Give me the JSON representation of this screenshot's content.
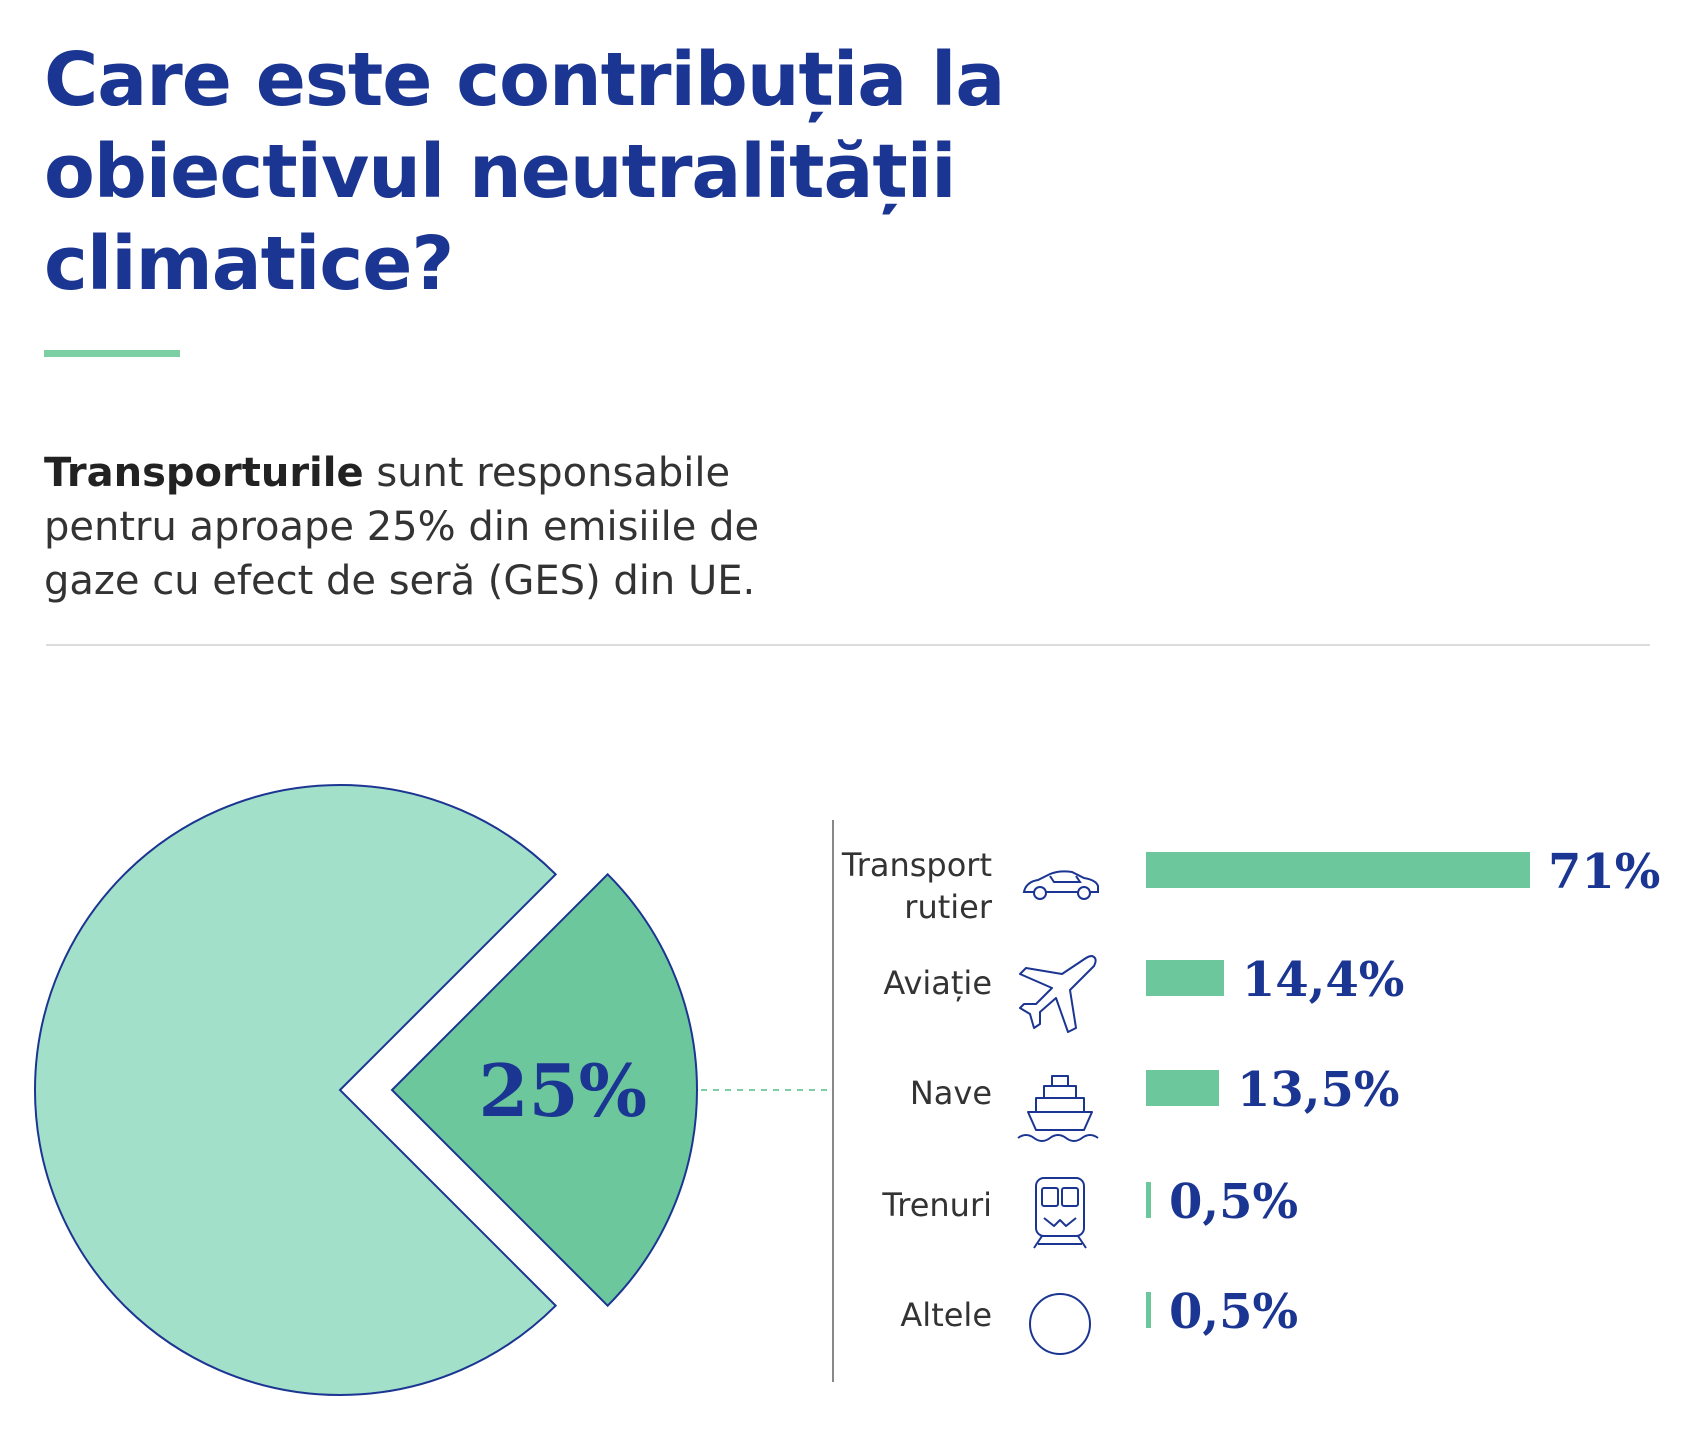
{
  "header": {
    "title_lines": [
      "Care este contribuția la",
      "obiectivul neutralității",
      "climatice?"
    ]
  },
  "intro": {
    "bold": "Transporturile",
    "rest": " sunt responsabile pentru aproape 25% din emisiile de gaze cu efect de seră (GES) din UE."
  },
  "colors": {
    "title": "#1b3592",
    "accent_green": "#6cc89c",
    "pie_rest": "#a3e0ca",
    "pie_slice": "#6cc89c",
    "outline": "#1b3592"
  },
  "chart_data": [
    {
      "type": "pie",
      "slices": [
        {
          "label": "",
          "value": 75
        },
        {
          "label": "25%",
          "value": 25,
          "exploded": true
        }
      ],
      "slice_label": "25%"
    },
    {
      "type": "bar",
      "orientation": "horizontal",
      "categories": [
        "Transport rutier",
        "Aviație",
        "Nave",
        "Trenuri",
        "Altele"
      ],
      "category_lines": [
        [
          "Transport",
          "rutier"
        ],
        [
          "Aviație"
        ],
        [
          "Nave"
        ],
        [
          "Trenuri"
        ],
        [
          "Altele"
        ]
      ],
      "icons": [
        "car-icon",
        "airplane-icon",
        "ship-icon",
        "train-icon",
        "circle-icon"
      ],
      "values": [
        71,
        14.4,
        13.5,
        0.5,
        0.5
      ],
      "value_labels": [
        "71%",
        "14,4%",
        "13,5%",
        "0,5%",
        "0,5%"
      ],
      "xlim": [
        0,
        71
      ]
    }
  ]
}
